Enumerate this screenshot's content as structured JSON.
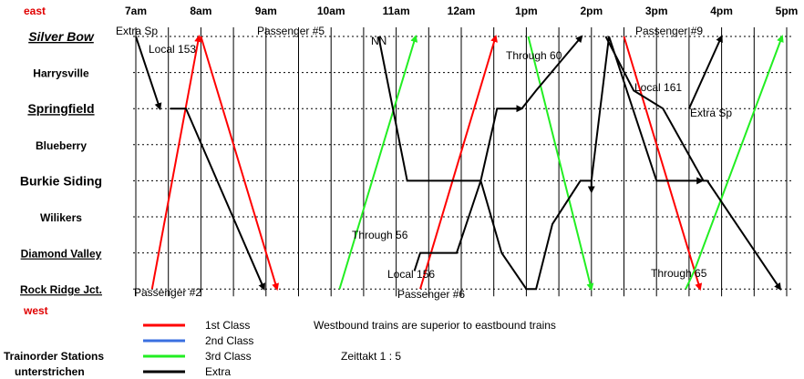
{
  "directions": {
    "top": "east",
    "bottom": "west",
    "color": "#e00000"
  },
  "hours": [
    "7am",
    "8am",
    "9am",
    "10am",
    "11am",
    "12am",
    "1pm",
    "2pm",
    "3pm",
    "4pm",
    "5pm"
  ],
  "time_start": 7,
  "time_end": 17,
  "stations": [
    {
      "name": "Silver Bow",
      "trainorder": true,
      "style": "italic-large"
    },
    {
      "name": "Harrysville",
      "trainorder": false,
      "style": "normal"
    },
    {
      "name": "Springfield",
      "trainorder": true,
      "style": "large"
    },
    {
      "name": "Blueberry",
      "trainorder": false,
      "style": "normal"
    },
    {
      "name": "Burkie Siding",
      "trainorder": false,
      "style": "large"
    },
    {
      "name": "Wilikers",
      "trainorder": false,
      "style": "normal"
    },
    {
      "name": "Diamond Valley",
      "trainorder": true,
      "style": "normal"
    },
    {
      "name": "Rock Ridge Jct.",
      "trainorder": true,
      "style": "normal"
    }
  ],
  "classes": [
    {
      "name": "1st Class",
      "color": "#ff0000"
    },
    {
      "name": "2nd Class",
      "color": "#3a6fe0"
    },
    {
      "name": "3rd Class",
      "color": "#22ee22"
    },
    {
      "name": "Extra",
      "color": "#000000"
    }
  ],
  "legend_notes": {
    "left_line1": "Trainorder Stations",
    "left_line2": "unterstrichen"
  },
  "notes": {
    "superiority": "Westbound trains are superior to eastbound trains",
    "zeittakt": "Zeittakt 1 : 5"
  },
  "train_labels": [
    "Extra Sp",
    "Local 153",
    "Passenger #5",
    "NN",
    "Through 60",
    "Passenger #9",
    "Local 161",
    "Extra Sp",
    "Through 56",
    "Local 156",
    "Passenger #2",
    "Passenger #6",
    "Through 65"
  ],
  "trains": [
    {
      "class": 0,
      "points": [
        [
          7.25,
          7
        ],
        [
          7.97,
          0
        ]
      ]
    },
    {
      "class": 0,
      "points": [
        [
          8.0,
          0
        ],
        [
          9.17,
          7
        ]
      ]
    },
    {
      "class": 0,
      "points": [
        [
          11.37,
          7
        ],
        [
          12.53,
          0
        ]
      ]
    },
    {
      "class": 0,
      "points": [
        [
          14.5,
          0
        ],
        [
          15.67,
          7
        ]
      ]
    },
    {
      "class": 2,
      "points": [
        [
          10.13,
          7
        ],
        [
          11.3,
          0
        ]
      ]
    },
    {
      "class": 2,
      "points": [
        [
          13.03,
          0
        ],
        [
          14.0,
          7
        ]
      ]
    },
    {
      "class": 2,
      "points": [
        [
          15.45,
          7
        ],
        [
          15.58,
          6.5
        ],
        [
          16.93,
          0
        ]
      ]
    },
    {
      "class": 3,
      "points": [
        [
          7.0,
          0
        ],
        [
          7.37,
          2
        ]
      ]
    },
    {
      "class": 3,
      "points": [
        [
          7.53,
          2
        ],
        [
          7.77,
          2
        ],
        [
          8.97,
          7
        ]
      ]
    },
    {
      "class": 3,
      "points": [
        [
          10.73,
          0
        ],
        [
          11.17,
          4
        ],
        [
          12.3,
          4
        ],
        [
          12.62,
          6
        ],
        [
          13.0,
          7
        ],
        [
          13.15,
          7
        ],
        [
          13.4,
          5.2
        ],
        [
          13.83,
          4
        ],
        [
          14.0,
          4
        ],
        [
          14.0,
          4.3
        ]
      ]
    },
    {
      "class": 3,
      "points": [
        [
          11.28,
          6.5
        ],
        [
          11.37,
          6
        ],
        [
          11.93,
          6
        ],
        [
          12.3,
          4
        ],
        [
          12.55,
          2
        ],
        [
          12.93,
          2
        ]
      ]
    },
    {
      "class": 3,
      "points": [
        [
          12.93,
          2
        ],
        [
          13.15,
          1.5
        ],
        [
          13.85,
          0
        ]
      ]
    },
    {
      "class": 3,
      "points": [
        [
          14.22,
          0
        ],
        [
          14.65,
          1.5
        ],
        [
          15.1,
          2
        ],
        [
          15.72,
          4
        ],
        [
          15.78,
          4
        ],
        [
          16.9,
          7
        ]
      ]
    },
    {
      "class": 3,
      "points": [
        [
          14.0,
          4
        ],
        [
          14.27,
          0
        ],
        [
          15.0,
          4
        ],
        [
          15.7,
          4
        ]
      ]
    },
    {
      "class": 3,
      "points": [
        [
          15.5,
          2
        ],
        [
          16.0,
          0
        ]
      ]
    }
  ]
}
